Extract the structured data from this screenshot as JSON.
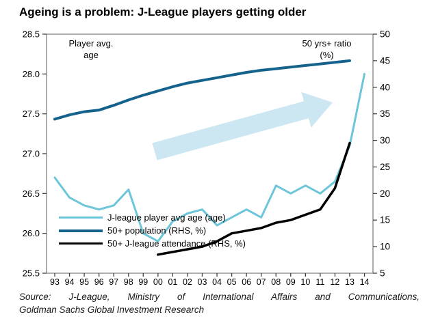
{
  "title": "Ageing is a problem: J-League players getting older",
  "annotations": {
    "left_line1": "Player avg.",
    "left_line2": "age",
    "right_line1": "50 yrs+ ratio",
    "right_line2": "(%)"
  },
  "source": {
    "line1": "Source: J-League, Ministry of International Affairs and Communications,",
    "line2": "Goldman Sachs Global Investment Research"
  },
  "chart_data": {
    "type": "line",
    "title": "Ageing is a problem: J-League players getting older",
    "categories": [
      "93",
      "94",
      "95",
      "96",
      "97",
      "98",
      "99",
      "00",
      "01",
      "02",
      "03",
      "04",
      "05",
      "06",
      "07",
      "08",
      "09",
      "10",
      "11",
      "12",
      "13",
      "14"
    ],
    "left_axis": {
      "label": "Player avg. age",
      "min": 25.5,
      "max": 28.5,
      "step": 0.5,
      "tick_values": [
        28.5,
        28.0,
        27.5,
        27.0,
        26.5,
        26.0,
        25.5
      ],
      "tick_labels": [
        "28.5",
        "28.0",
        "27.5",
        "27.0",
        "26.5",
        "26.0",
        "25.5"
      ]
    },
    "right_axis": {
      "label": "50 yrs+ ratio (%)",
      "min": 5,
      "max": 50,
      "step": 5,
      "tick_values": [
        50,
        45,
        40,
        35,
        30,
        25,
        20,
        15,
        10,
        5
      ],
      "tick_labels": [
        "50",
        "45",
        "40",
        "35",
        "30",
        "25",
        "20",
        "15",
        "10",
        "5"
      ]
    },
    "grid": false,
    "legend_position": "lower-left",
    "series": [
      {
        "name": "J-league player avg age (age)",
        "axis": "left",
        "color": "#6cc5d9",
        "width": 3,
        "start_index": 0,
        "values": [
          26.7,
          26.45,
          26.35,
          26.3,
          26.35,
          26.55,
          26.0,
          25.9,
          26.15,
          26.25,
          26.3,
          26.1,
          26.2,
          26.3,
          26.2,
          26.6,
          26.5,
          26.6,
          26.5,
          26.65,
          27.1,
          28.0
        ]
      },
      {
        "name": "50+ population (RHS, %)",
        "axis": "right",
        "color": "#15638d",
        "width": 4,
        "start_index": 0,
        "values": [
          34.0,
          34.8,
          35.4,
          35.7,
          36.6,
          37.6,
          38.5,
          39.3,
          40.1,
          40.8,
          41.3,
          41.8,
          42.3,
          42.8,
          43.2,
          43.5,
          43.8,
          44.1,
          44.4,
          44.7,
          45.0
        ]
      },
      {
        "name": "50+ J-league attendance (RHS, %)",
        "axis": "right",
        "color": "#000000",
        "width": 3.5,
        "start_index": 7,
        "values": [
          8.5,
          9.0,
          9.5,
          10.0,
          11.0,
          12.5,
          13.0,
          13.5,
          14.5,
          15.0,
          16.0,
          17.0,
          21.0,
          29.5
        ]
      }
    ],
    "arrow_annotation": {
      "from": [
        226,
        222
      ],
      "to": [
        486,
        150
      ],
      "color": "#c7e4ef",
      "opacity": 0.9,
      "half_width": 13,
      "head_half_width": 27,
      "head_length": 40
    }
  }
}
